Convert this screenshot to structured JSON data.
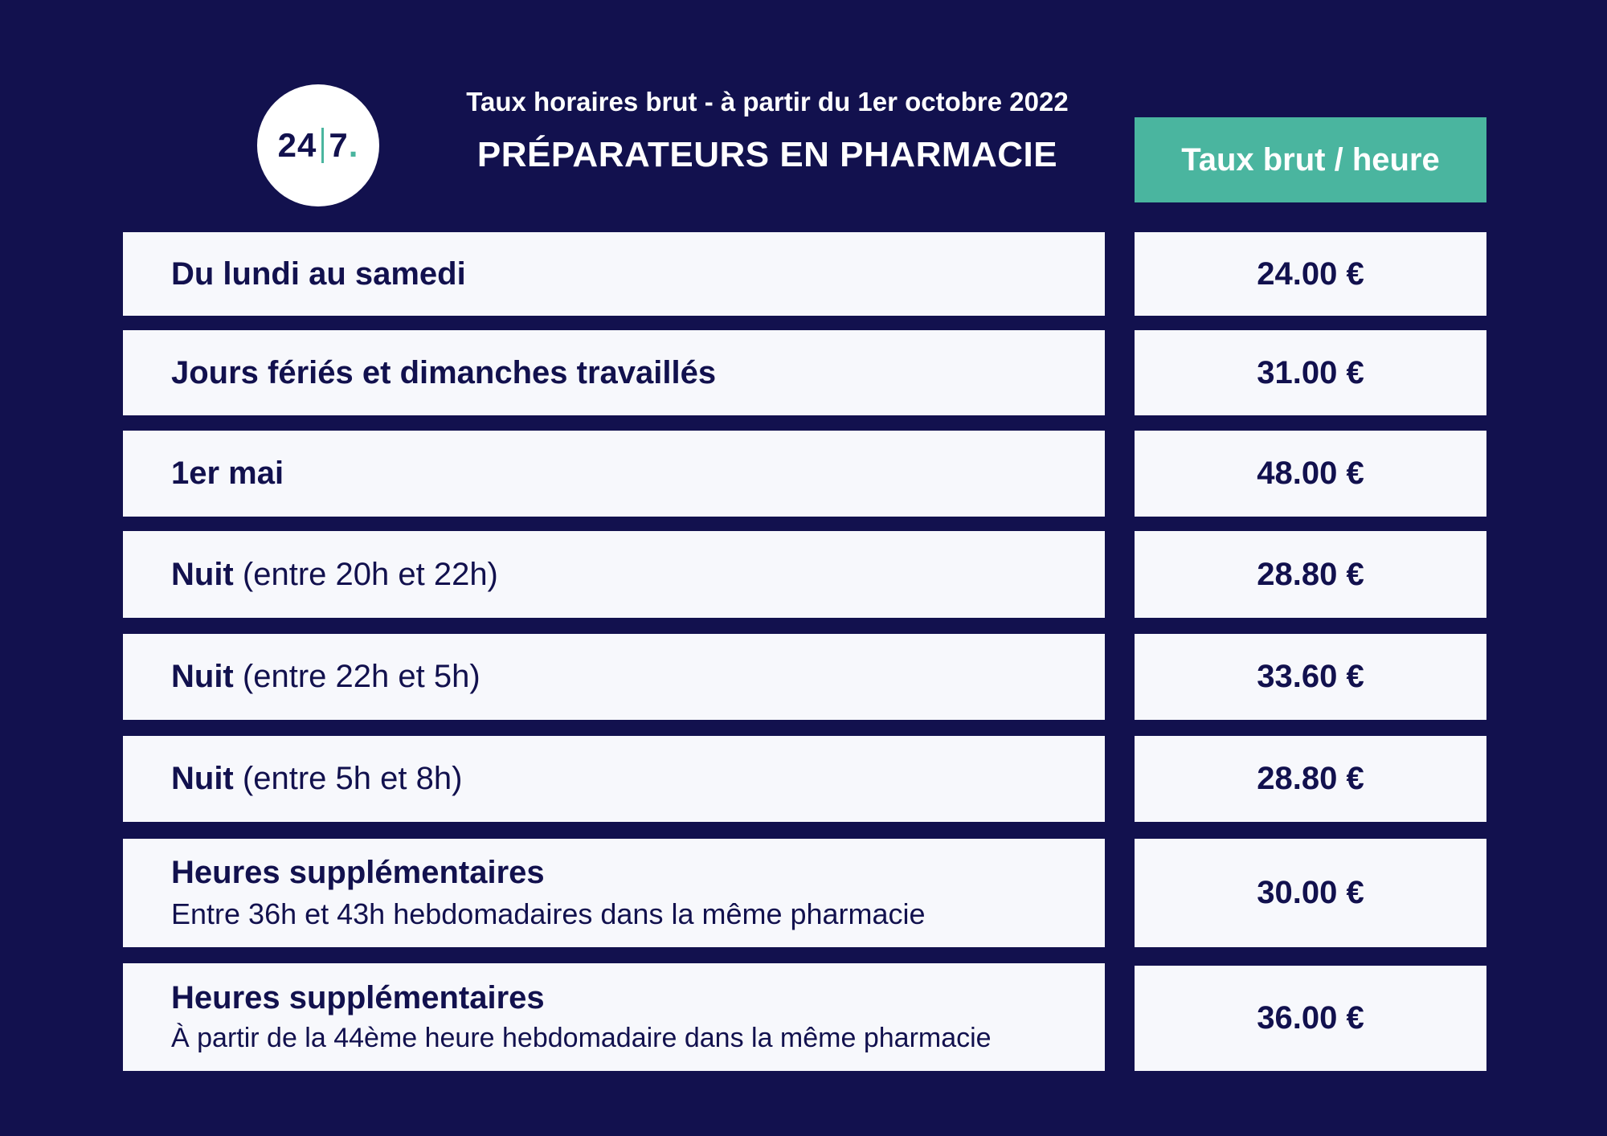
{
  "logo": {
    "part1": "24",
    "part2": "7",
    "dot": "."
  },
  "header": {
    "subtitle": "Taux horaires brut - à partir du 1er octobre 2022",
    "title": "PRÉPARATEURS EN PHARMACIE",
    "rate_column": "Taux brut / heure"
  },
  "rows": [
    {
      "label": "Du lundi au samedi",
      "value": "24.00 €"
    },
    {
      "label": "Jours fériés et dimanches travaillés",
      "value": "31.00 €"
    },
    {
      "label": "1er mai",
      "value": "48.00 €"
    },
    {
      "label": "Nuit",
      "detail": "(entre 20h et 22h)",
      "value": "28.80 €"
    },
    {
      "label": "Nuit",
      "detail": "(entre 22h et 5h)",
      "value": "33.60 €"
    },
    {
      "label": "Nuit",
      "detail": "(entre 5h et 8h)",
      "value": "28.80 €"
    },
    {
      "label": "Heures supplémentaires",
      "detail": "Entre 36h et 43h hebdomadaires dans la même pharmacie",
      "value": "30.00 €"
    },
    {
      "label": "Heures supplémentaires",
      "detail": "À partir de la 44ème heure hebdomadaire dans la même pharmacie",
      "value": "36.00 €"
    }
  ],
  "colors": {
    "background": "#12114e",
    "accent": "#4ab59f",
    "cell": "#f7f8fc"
  }
}
